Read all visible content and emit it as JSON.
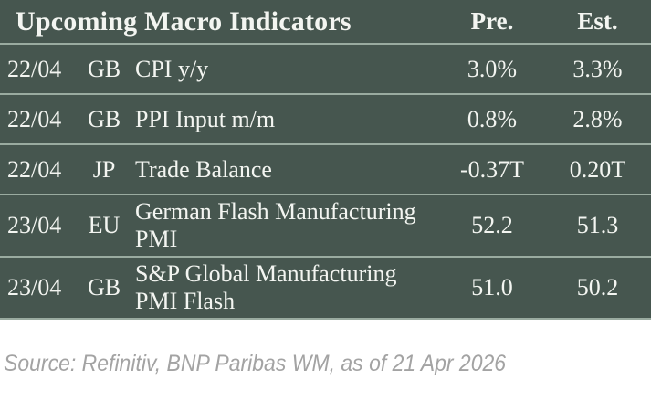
{
  "table": {
    "title": "Upcoming Macro Indicators",
    "columns": {
      "pre": "Pre.",
      "est": "Est."
    },
    "rows": [
      {
        "date": "22/04",
        "country": "GB",
        "indicator": "CPI y/y",
        "pre": "3.0%",
        "est": "3.3%"
      },
      {
        "date": "22/04",
        "country": "GB",
        "indicator": "PPI Input m/m",
        "pre": "0.8%",
        "est": "2.8%"
      },
      {
        "date": "22/04",
        "country": "JP",
        "indicator": "Trade Balance",
        "pre": "-0.37T",
        "est": "0.20T"
      },
      {
        "date": "23/04",
        "country": "EU",
        "indicator": "German Flash Manufacturing PMI",
        "pre": "52.2",
        "est": "51.3"
      },
      {
        "date": "23/04",
        "country": "GB",
        "indicator": "S&P Global Manufacturing PMI Flash",
        "pre": "51.0",
        "est": "50.2"
      }
    ]
  },
  "footer": {
    "source": "Source: Refinitiv, BNP Paribas WM, as of 21 Apr 2026"
  },
  "colors": {
    "table_background": "#46564f",
    "divider": "#9aaba0",
    "table_text": "#f3f5f1",
    "source_text": "#a3a3a3"
  }
}
